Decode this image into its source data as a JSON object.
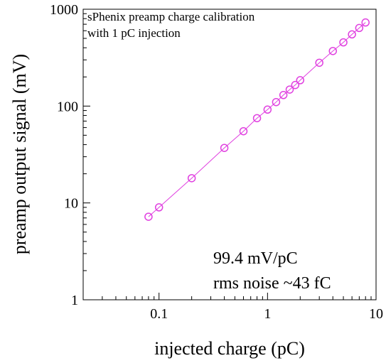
{
  "chart_data": {
    "type": "scatter",
    "title": "sPhenix preamp charge calibration",
    "subtitle": "with 1 pC injection",
    "xlabel": "injected charge (pC)",
    "ylabel": "preamp output signal (mV)",
    "xscale": "log",
    "yscale": "log",
    "xlim": [
      0.02,
      10
    ],
    "ylim": [
      1,
      1000
    ],
    "x_ticks": [
      0.1,
      1,
      10
    ],
    "x_tick_labels": [
      "0.1",
      "1",
      "10"
    ],
    "y_ticks": [
      1,
      10,
      100,
      1000
    ],
    "y_tick_labels": [
      "1",
      "10",
      "100",
      "1000"
    ],
    "grid": false,
    "legend": "none",
    "annotations": [
      "99.4 mV/pC",
      "rms noise ~43 fC"
    ],
    "color": "#e040e0",
    "marker": "open-circle",
    "connected": true,
    "series": [
      {
        "x": [
          0.08,
          0.1,
          0.2,
          0.4,
          0.6,
          0.8,
          1.0,
          1.2,
          1.4,
          1.6,
          1.8,
          2.0,
          3.0,
          4.0,
          5.0,
          6.0,
          7.0,
          8.0
        ],
        "y": [
          7.2,
          9.0,
          18.0,
          37.0,
          55.0,
          75.0,
          92.0,
          110.0,
          130.0,
          148.0,
          165.0,
          185.0,
          280.0,
          370.0,
          455.0,
          550.0,
          640.0,
          730.0
        ]
      }
    ]
  }
}
